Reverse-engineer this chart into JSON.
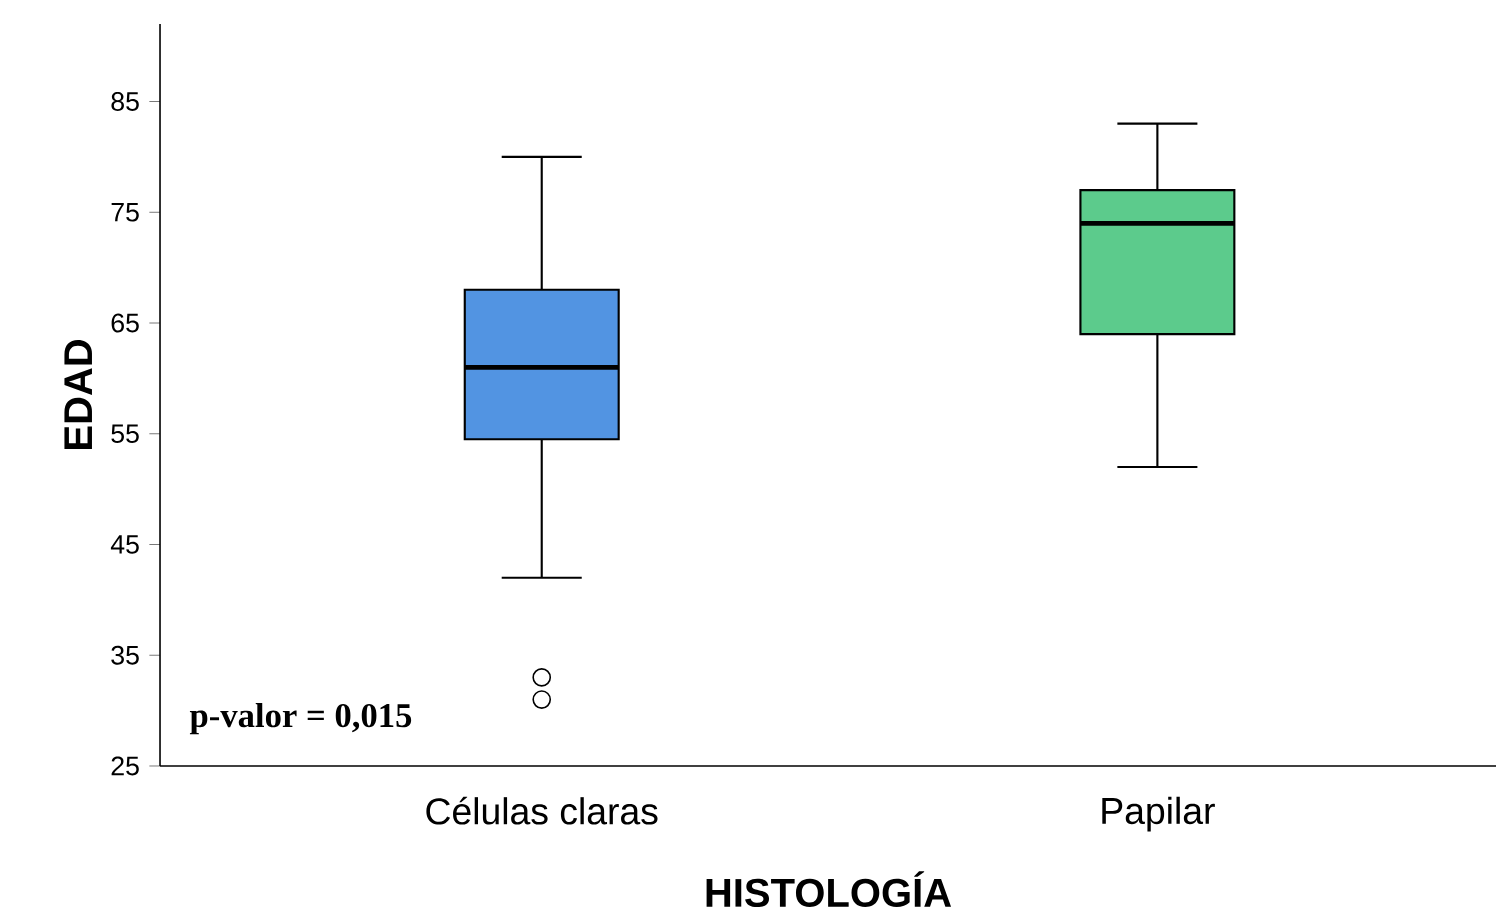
{
  "chart_data": {
    "type": "box",
    "xlabel": "HISTOLOGÍA",
    "ylabel": "EDAD",
    "categories": [
      "Células claras",
      "Papilar"
    ],
    "colors": [
      "#5294e2",
      "#5ccb8c"
    ],
    "boxes": [
      {
        "low": 42,
        "q1": 54.5,
        "median": 61,
        "q3": 68,
        "high": 80,
        "outliers": [
          33,
          31
        ]
      },
      {
        "low": 52,
        "q1": 64,
        "median": 74,
        "q3": 77,
        "high": 83
      }
    ],
    "ylim": [
      25,
      92
    ],
    "yticks": [
      25,
      35,
      45,
      55,
      65,
      75,
      85
    ],
    "annotations": [
      "p-valor = 0,015"
    ]
  }
}
